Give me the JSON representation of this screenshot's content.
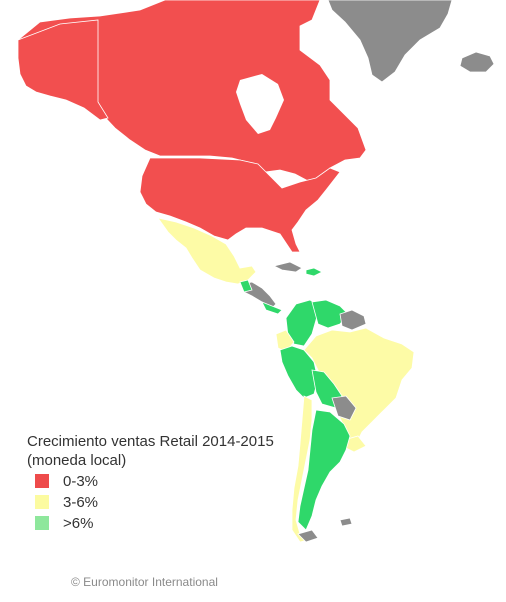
{
  "legend": {
    "title_line1": "Crecimiento ventas Retail 2014-2015",
    "title_line2": "(moneda local)",
    "items": [
      {
        "label": "0-3%",
        "color": "#ee4b4b",
        "icon": "red-swatch"
      },
      {
        "label": "3-6%",
        "color": "#fcfba0",
        "icon": "yellow-swatch"
      },
      {
        "label": ">6%",
        "color": "#8ee79c",
        "icon": "green-swatch"
      }
    ]
  },
  "credit": "© Euromonitor International",
  "colors": {
    "low": "#f24f4f",
    "mid": "#fdfba6",
    "high": "#2fd86a",
    "nodata": "#8c8c8c",
    "border": "#ffffff"
  }
}
